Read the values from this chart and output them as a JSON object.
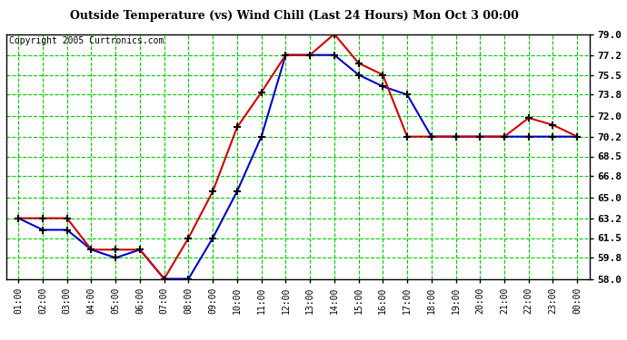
{
  "title": "Outside Temperature (vs) Wind Chill (Last 24 Hours) Mon Oct 3 00:00",
  "copyright": "Copyright 2005 Curtronics.com",
  "x_labels": [
    "01:00",
    "02:00",
    "03:00",
    "04:00",
    "05:00",
    "06:00",
    "07:00",
    "08:00",
    "09:00",
    "10:00",
    "11:00",
    "12:00",
    "13:00",
    "14:00",
    "15:00",
    "16:00",
    "17:00",
    "18:00",
    "19:00",
    "20:00",
    "21:00",
    "22:00",
    "23:00",
    "00:00"
  ],
  "outside_temp": [
    63.2,
    62.2,
    62.2,
    60.5,
    59.8,
    60.5,
    58.0,
    58.0,
    61.5,
    65.5,
    70.2,
    77.2,
    77.2,
    77.2,
    75.5,
    74.5,
    73.8,
    70.2,
    70.2,
    70.2,
    70.2,
    70.2,
    70.2,
    70.2
  ],
  "wind_chill": [
    63.2,
    63.2,
    63.2,
    60.5,
    60.5,
    60.5,
    58.0,
    61.5,
    65.5,
    71.0,
    74.0,
    77.2,
    77.2,
    79.0,
    76.5,
    75.5,
    70.2,
    70.2,
    70.2,
    70.2,
    70.2,
    71.8,
    71.2,
    70.2
  ],
  "outside_color": "#0000cc",
  "windchill_color": "#cc0000",
  "bg_color": "#ffffff",
  "plot_bg_color": "#ffffff",
  "grid_color": "#00cc00",
  "ylim": [
    58.0,
    79.0
  ],
  "ytick_values": [
    58.0,
    59.8,
    61.5,
    63.2,
    65.0,
    66.8,
    68.5,
    70.2,
    72.0,
    73.8,
    75.5,
    77.2,
    79.0
  ],
  "ytick_labels": [
    "58.0",
    "59.8",
    "61.5",
    "63.2",
    "65.0",
    "66.8",
    "68.5",
    "70.2",
    "72.0",
    "73.8",
    "75.5",
    "77.2",
    "79.0"
  ],
  "title_fontsize": 9,
  "copyright_fontsize": 7,
  "xtick_fontsize": 7,
  "ytick_fontsize": 8
}
